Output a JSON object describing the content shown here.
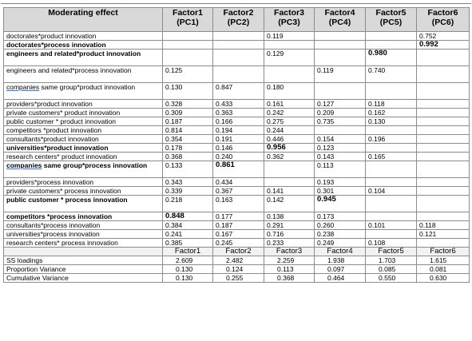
{
  "table": {
    "header": [
      "Moderating effect",
      "Factor1\n(PC1)",
      "Factor2\n(PC2)",
      "Factor3\n(PC3)",
      "Factor4\n(PC4)",
      "Factor5\n(PC5)",
      "Factor6\n(PC6)"
    ],
    "rows": [
      {
        "label": "doctorates*product innovation",
        "bold": false,
        "tall": false,
        "underline": "",
        "cells": [
          "",
          "",
          "0.119",
          "",
          "",
          "0.752"
        ],
        "bold_cells": []
      },
      {
        "label": "doctorates*process innovation",
        "bold": true,
        "tall": false,
        "underline": "",
        "cells": [
          "",
          "",
          "",
          "",
          "",
          "0.992"
        ],
        "bold_cells": [
          5
        ]
      },
      {
        "label": "engineers and related*product innovation",
        "bold": true,
        "tall": true,
        "underline": "",
        "cells": [
          "",
          "",
          "0.129",
          "",
          "0.980",
          ""
        ],
        "bold_cells": [
          4
        ]
      },
      {
        "label": "engineers and related*process innovation",
        "bold": false,
        "tall": true,
        "underline": "",
        "cells": [
          "0.125",
          "",
          "",
          "0.119",
          "0.740",
          ""
        ],
        "bold_cells": []
      },
      {
        "label": "same group*product innovation",
        "bold": false,
        "tall": true,
        "underline": "companies",
        "cells": [
          "0.130",
          "0.847",
          "0.180",
          "",
          "",
          ""
        ],
        "bold_cells": []
      },
      {
        "label": "providers*product innovation",
        "bold": false,
        "tall": false,
        "underline": "",
        "cells": [
          "0.328",
          "0.433",
          "0.161",
          "0.127",
          "0.118",
          ""
        ],
        "bold_cells": []
      },
      {
        "label": "private customers* product innovation",
        "bold": false,
        "tall": false,
        "underline": "",
        "cells": [
          "0.309",
          "0.363",
          "0.242",
          "0.209",
          "0.162",
          ""
        ],
        "bold_cells": []
      },
      {
        "label": "public customer * product innovation",
        "bold": false,
        "tall": false,
        "underline": "",
        "cells": [
          "0.187",
          "0.166",
          "0.275",
          "0.735",
          "0.130",
          ""
        ],
        "bold_cells": []
      },
      {
        "label": "competitors *product innovation",
        "bold": false,
        "tall": false,
        "underline": "",
        "cells": [
          "0.814",
          "0.194",
          "0.244",
          "",
          "",
          ""
        ],
        "bold_cells": []
      },
      {
        "label": "consultants*product innovation",
        "bold": false,
        "tall": false,
        "underline": "",
        "cells": [
          "0.354",
          "0.191",
          "0.446",
          "0.154",
          "0.196",
          ""
        ],
        "bold_cells": []
      },
      {
        "label": "universities*product innovation",
        "bold": true,
        "tall": false,
        "underline": "",
        "cells": [
          "0.178",
          "0.146",
          "0.956",
          "0.123",
          "",
          ""
        ],
        "bold_cells": [
          2
        ]
      },
      {
        "label": "research centers* product innovation",
        "bold": false,
        "tall": false,
        "underline": "",
        "cells": [
          "0.368",
          "0.240",
          "0.362",
          "0.143",
          "0.165",
          ""
        ],
        "bold_cells": []
      },
      {
        "label": "same group*process innovation",
        "bold": true,
        "tall": true,
        "underline": "companies",
        "cells": [
          "0.133",
          "0.861",
          "",
          "0.113",
          "",
          ""
        ],
        "bold_cells": [
          1
        ]
      },
      {
        "label": "providers*process innovation",
        "bold": false,
        "tall": false,
        "underline": "",
        "cells": [
          "0.343",
          "0.434",
          "",
          "0.193",
          "",
          ""
        ],
        "bold_cells": []
      },
      {
        "label": "private customers* process innovation",
        "bold": false,
        "tall": false,
        "underline": "",
        "cells": [
          "0.339",
          "0.367",
          "0.141",
          "0.301",
          "0.104",
          ""
        ],
        "bold_cells": []
      },
      {
        "label": "public customer * process innovation",
        "bold": true,
        "tall": true,
        "underline": "",
        "cells": [
          "0.218",
          "0.163",
          "0.142",
          "0.945",
          "",
          ""
        ],
        "bold_cells": [
          3
        ]
      },
      {
        "label": "competitors *process innovation",
        "bold": true,
        "tall": false,
        "underline": "",
        "cells": [
          "0.848",
          "0.177",
          "0.138",
          "0.173",
          "",
          ""
        ],
        "bold_cells": [
          0
        ]
      },
      {
        "label": "consultants*process innovation",
        "bold": false,
        "tall": false,
        "underline": "",
        "cells": [
          "0.384",
          "0.187",
          "0.291",
          "0.260",
          "0.101",
          "0.118"
        ],
        "bold_cells": []
      },
      {
        "label": "universities*process innovation",
        "bold": false,
        "tall": false,
        "underline": "",
        "cells": [
          "0.241",
          "0.167",
          "0.716",
          "0.238",
          "",
          "0.121"
        ],
        "bold_cells": []
      },
      {
        "label": "research centers* process innovation",
        "bold": false,
        "tall": false,
        "underline": "",
        "cells": [
          "0.385",
          "0.245",
          "0.233",
          "0.249",
          "0.108",
          ""
        ],
        "bold_cells": []
      }
    ],
    "subheader": [
      "",
      "Factor1",
      "Factor2",
      "Factor3",
      "Factor4",
      "Factor5",
      "Factor6"
    ],
    "summary": [
      {
        "label": "SS loadings",
        "cells": [
          "2.609",
          "2.482",
          "2.259",
          "1.938",
          "1.703",
          "1.615"
        ]
      },
      {
        "label": "Proportion Variance",
        "cells": [
          "0.130",
          "0.124",
          "0.113",
          "0.097",
          "0.085",
          "0.081"
        ]
      },
      {
        "label": "Cumulative Variance",
        "cells": [
          "0.130",
          "0.255",
          "0.368",
          "0.464",
          "0.550",
          "0.630"
        ]
      }
    ]
  }
}
